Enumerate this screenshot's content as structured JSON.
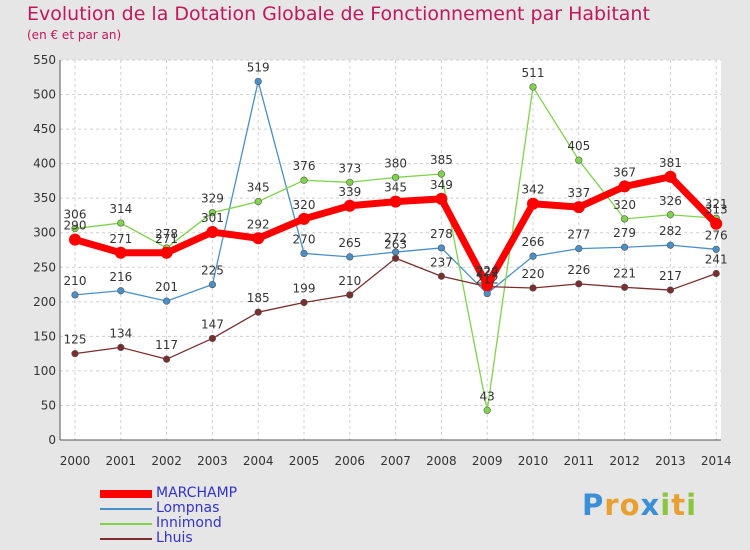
{
  "header": {
    "title": "Evolution de la Dotation Globale de Fonctionnement par Habitant",
    "subtitle": "(en € et par an)"
  },
  "chart_data": {
    "type": "line",
    "x": [
      2000,
      2001,
      2002,
      2003,
      2004,
      2005,
      2006,
      2007,
      2008,
      2009,
      2010,
      2011,
      2012,
      2013,
      2014
    ],
    "ylim": [
      0,
      550
    ],
    "yticks": [
      0,
      50,
      100,
      150,
      200,
      250,
      300,
      350,
      400,
      450,
      500,
      550
    ],
    "grid": true,
    "legend": "bottom-left",
    "series": [
      {
        "name": "MARCHAMP",
        "color": "#ff0000",
        "values": [
          290,
          271,
          271,
          301,
          292,
          320,
          339,
          345,
          349,
          224,
          342,
          337,
          367,
          381,
          313
        ]
      },
      {
        "name": "Lompnas",
        "color": "#4a90c8",
        "values": [
          210,
          216,
          201,
          225,
          519,
          270,
          265,
          272,
          278,
          212,
          266,
          277,
          279,
          282,
          276
        ]
      },
      {
        "name": "Innimond",
        "color": "#7fd44c",
        "values": [
          306,
          314,
          278,
          329,
          345,
          376,
          373,
          380,
          385,
          43,
          511,
          405,
          320,
          326,
          321
        ]
      },
      {
        "name": "Lhuis",
        "color": "#7a2e2e",
        "values": [
          125,
          134,
          117,
          147,
          185,
          199,
          210,
          263,
          237,
          222,
          220,
          226,
          221,
          217,
          241
        ]
      }
    ]
  },
  "logo": {
    "letters": [
      "P",
      "r",
      "o",
      "x",
      "i",
      "t",
      "i"
    ],
    "colors": [
      "#3b8fd6",
      "#e8a030",
      "#e8a030",
      "#3b8fd6",
      "#8cc63f",
      "#e8a030",
      "#8cc63f"
    ]
  }
}
